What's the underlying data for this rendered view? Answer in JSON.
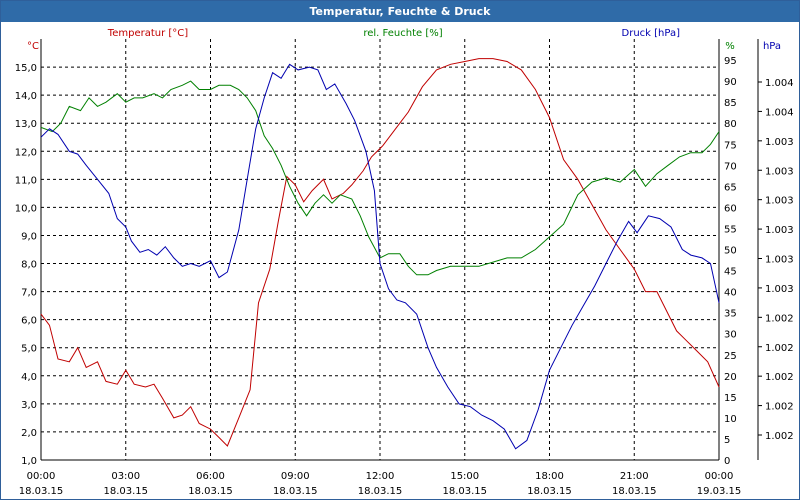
{
  "window": {
    "title": "Temperatur, Feuchte & Druck"
  },
  "colors": {
    "temperature": "#c00000",
    "humidity": "#008000",
    "pressure": "#0000b0",
    "grid": "#000000",
    "titlebar": "#2f6ba8"
  },
  "chart_data": {
    "type": "line",
    "title": "Temperatur, Feuchte & Druck",
    "grid": true,
    "x": {
      "range": [
        0,
        24
      ],
      "ticks": [
        0,
        3,
        6,
        9,
        12,
        15,
        18,
        21,
        24
      ],
      "tick_time_labels": [
        "00:00",
        "03:00",
        "06:00",
        "09:00",
        "12:00",
        "15:00",
        "18:00",
        "21:00",
        "00:00"
      ],
      "tick_date_labels": [
        "18.03.15",
        "18.03.15",
        "18.03.15",
        "18.03.15",
        "18.03.15",
        "18.03.15",
        "18.03.15",
        "18.03.15",
        "19.03.15"
      ]
    },
    "axes": {
      "temperature": {
        "label": "Temperatur [°C]",
        "unit": "°C",
        "range": [
          1.0,
          16.0
        ],
        "ticks": [
          "15,0",
          "14,0",
          "13,0",
          "12,0",
          "11,0",
          "10,0",
          "9,0",
          "8,0",
          "7,0",
          "6,0",
          "5,0",
          "4,0",
          "3,0",
          "2,0",
          "1,0"
        ]
      },
      "humidity": {
        "label": "rel. Feuchte [%]",
        "unit": "%",
        "range": [
          0,
          100
        ],
        "ticks": [
          "95",
          "90",
          "85",
          "80",
          "75",
          "70",
          "65",
          "60",
          "55",
          "50",
          "45",
          "40",
          "35",
          "30",
          "25",
          "20",
          "15",
          "10",
          "5",
          "0"
        ]
      },
      "pressure": {
        "label": "Druck [hPa]",
        "unit": "hPa",
        "range": [
          0,
          15
        ],
        "ticks": [
          "1.004",
          "1.004",
          "1.003",
          "1.003",
          "1.003",
          "1.003",
          "1.003",
          "1.003",
          "1.002",
          "1.002",
          "1.002",
          "1.002",
          "1.002"
        ]
      }
    },
    "series": [
      {
        "name": "Temperatur [°C]",
        "axis": "temperature",
        "points": [
          [
            0,
            6.2
          ],
          [
            0.3,
            5.8
          ],
          [
            0.6,
            4.6
          ],
          [
            1.0,
            4.5
          ],
          [
            1.3,
            5.0
          ],
          [
            1.6,
            4.3
          ],
          [
            2.0,
            4.5
          ],
          [
            2.3,
            3.8
          ],
          [
            2.7,
            3.7
          ],
          [
            3.0,
            4.2
          ],
          [
            3.3,
            3.7
          ],
          [
            3.7,
            3.6
          ],
          [
            4.0,
            3.7
          ],
          [
            4.3,
            3.2
          ],
          [
            4.7,
            2.5
          ],
          [
            5.0,
            2.6
          ],
          [
            5.3,
            2.9
          ],
          [
            5.6,
            2.3
          ],
          [
            6.0,
            2.1
          ],
          [
            6.3,
            1.8
          ],
          [
            6.6,
            1.5
          ],
          [
            7.0,
            2.5
          ],
          [
            7.4,
            3.5
          ],
          [
            7.7,
            6.6
          ],
          [
            8.1,
            7.8
          ],
          [
            8.4,
            9.5
          ],
          [
            8.7,
            11.1
          ],
          [
            9.0,
            10.8
          ],
          [
            9.3,
            10.2
          ],
          [
            9.6,
            10.6
          ],
          [
            10.0,
            11.0
          ],
          [
            10.3,
            10.3
          ],
          [
            10.7,
            10.5
          ],
          [
            11.0,
            10.8
          ],
          [
            11.4,
            11.3
          ],
          [
            11.7,
            11.8
          ],
          [
            12.1,
            12.2
          ],
          [
            12.4,
            12.6
          ],
          [
            12.7,
            13.0
          ],
          [
            13.0,
            13.4
          ],
          [
            13.5,
            14.3
          ],
          [
            14.0,
            14.9
          ],
          [
            14.5,
            15.1
          ],
          [
            15.0,
            15.2
          ],
          [
            15.5,
            15.3
          ],
          [
            16.0,
            15.3
          ],
          [
            16.5,
            15.2
          ],
          [
            17.0,
            14.9
          ],
          [
            17.5,
            14.2
          ],
          [
            18.0,
            13.2
          ],
          [
            18.5,
            11.7
          ],
          [
            19.0,
            11.0
          ],
          [
            19.5,
            10.1
          ],
          [
            20.0,
            9.2
          ],
          [
            20.5,
            8.5
          ],
          [
            21.0,
            7.8
          ],
          [
            21.4,
            7.0
          ],
          [
            21.8,
            7.0
          ],
          [
            22.1,
            6.4
          ],
          [
            22.5,
            5.6
          ],
          [
            22.8,
            5.3
          ],
          [
            23.2,
            4.9
          ],
          [
            23.6,
            4.5
          ],
          [
            24.0,
            3.6
          ]
        ]
      },
      {
        "name": "rel. Feuchte [%]",
        "axis": "humidity",
        "points": [
          [
            0,
            79
          ],
          [
            0.4,
            78
          ],
          [
            0.7,
            80
          ],
          [
            1.0,
            84
          ],
          [
            1.4,
            83
          ],
          [
            1.7,
            86
          ],
          [
            2.0,
            84
          ],
          [
            2.3,
            85
          ],
          [
            2.7,
            87
          ],
          [
            3.0,
            85
          ],
          [
            3.3,
            86
          ],
          [
            3.6,
            86
          ],
          [
            4.0,
            87
          ],
          [
            4.3,
            86
          ],
          [
            4.6,
            88
          ],
          [
            5.0,
            89
          ],
          [
            5.3,
            90
          ],
          [
            5.6,
            88
          ],
          [
            6.0,
            88
          ],
          [
            6.3,
            89
          ],
          [
            6.7,
            89
          ],
          [
            7.0,
            88
          ],
          [
            7.3,
            86
          ],
          [
            7.6,
            83
          ],
          [
            7.9,
            77
          ],
          [
            8.2,
            74
          ],
          [
            8.5,
            70
          ],
          [
            8.8,
            65
          ],
          [
            9.1,
            61
          ],
          [
            9.4,
            58
          ],
          [
            9.7,
            61
          ],
          [
            10.0,
            63
          ],
          [
            10.3,
            61
          ],
          [
            10.6,
            63
          ],
          [
            11.0,
            62
          ],
          [
            11.3,
            58
          ],
          [
            11.6,
            53
          ],
          [
            12.0,
            48
          ],
          [
            12.3,
            49
          ],
          [
            12.7,
            49
          ],
          [
            13.0,
            46
          ],
          [
            13.3,
            44
          ],
          [
            13.7,
            44
          ],
          [
            14.0,
            45
          ],
          [
            14.5,
            46
          ],
          [
            15.0,
            46
          ],
          [
            15.5,
            46
          ],
          [
            16.0,
            47
          ],
          [
            16.5,
            48
          ],
          [
            17.0,
            48
          ],
          [
            17.5,
            50
          ],
          [
            18.0,
            53
          ],
          [
            18.5,
            56
          ],
          [
            19.0,
            63
          ],
          [
            19.5,
            66
          ],
          [
            20.0,
            67
          ],
          [
            20.5,
            66
          ],
          [
            21.0,
            69
          ],
          [
            21.4,
            65
          ],
          [
            21.8,
            68
          ],
          [
            22.2,
            70
          ],
          [
            22.6,
            72
          ],
          [
            23.0,
            73
          ],
          [
            23.4,
            73
          ],
          [
            23.7,
            75
          ],
          [
            24.0,
            78
          ]
        ]
      },
      {
        "name": "Druck [hPa]",
        "axis": "pressure",
        "points": [
          [
            0,
            11.5
          ],
          [
            0.3,
            11.8
          ],
          [
            0.6,
            11.6
          ],
          [
            1.0,
            11.0
          ],
          [
            1.3,
            10.9
          ],
          [
            1.6,
            10.5
          ],
          [
            2.0,
            10.0
          ],
          [
            2.4,
            9.5
          ],
          [
            2.7,
            8.6
          ],
          [
            3.0,
            8.3
          ],
          [
            3.2,
            7.8
          ],
          [
            3.5,
            7.4
          ],
          [
            3.8,
            7.5
          ],
          [
            4.1,
            7.3
          ],
          [
            4.4,
            7.6
          ],
          [
            4.7,
            7.2
          ],
          [
            5.0,
            6.9
          ],
          [
            5.3,
            7.0
          ],
          [
            5.6,
            6.9
          ],
          [
            6.0,
            7.1
          ],
          [
            6.3,
            6.5
          ],
          [
            6.6,
            6.7
          ],
          [
            7.0,
            8.2
          ],
          [
            7.3,
            10.0
          ],
          [
            7.6,
            11.8
          ],
          [
            7.9,
            12.9
          ],
          [
            8.2,
            13.8
          ],
          [
            8.5,
            13.6
          ],
          [
            8.8,
            14.1
          ],
          [
            9.1,
            13.9
          ],
          [
            9.5,
            14.0
          ],
          [
            9.8,
            13.9
          ],
          [
            10.1,
            13.2
          ],
          [
            10.4,
            13.4
          ],
          [
            10.8,
            12.7
          ],
          [
            11.1,
            12.1
          ],
          [
            11.5,
            11.0
          ],
          [
            11.8,
            9.6
          ],
          [
            12.0,
            7.0
          ],
          [
            12.3,
            6.1
          ],
          [
            12.6,
            5.7
          ],
          [
            12.9,
            5.6
          ],
          [
            13.3,
            5.2
          ],
          [
            13.7,
            4.0
          ],
          [
            14.0,
            3.3
          ],
          [
            14.4,
            2.6
          ],
          [
            14.8,
            2.0
          ],
          [
            15.2,
            1.9
          ],
          [
            15.6,
            1.6
          ],
          [
            16.0,
            1.4
          ],
          [
            16.4,
            1.1
          ],
          [
            16.8,
            0.4
          ],
          [
            17.2,
            0.7
          ],
          [
            17.6,
            1.8
          ],
          [
            18.0,
            3.2
          ],
          [
            18.4,
            4.0
          ],
          [
            18.8,
            4.8
          ],
          [
            19.2,
            5.5
          ],
          [
            19.6,
            6.2
          ],
          [
            20.0,
            7.0
          ],
          [
            20.4,
            7.8
          ],
          [
            20.8,
            8.5
          ],
          [
            21.1,
            8.1
          ],
          [
            21.5,
            8.7
          ],
          [
            21.9,
            8.6
          ],
          [
            22.3,
            8.3
          ],
          [
            22.7,
            7.5
          ],
          [
            23.0,
            7.3
          ],
          [
            23.4,
            7.2
          ],
          [
            23.7,
            7.0
          ],
          [
            24.0,
            5.6
          ]
        ]
      }
    ]
  }
}
